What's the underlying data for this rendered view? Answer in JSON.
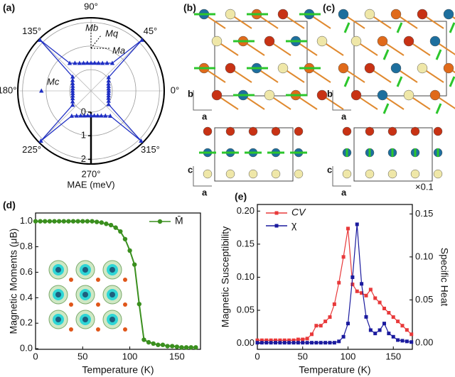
{
  "chart_data": [
    {
      "type": "polar",
      "title": "(a)",
      "xlabel": "MAE (meV)",
      "angle_ticks": [
        {
          "value": 90,
          "label": "90°"
        },
        {
          "value": 45,
          "label": "45°"
        },
        {
          "value": 0,
          "label": "0°"
        },
        {
          "value": 315,
          "label": "315°"
        },
        {
          "value": 270,
          "label": "270°"
        },
        {
          "value": 225,
          "label": "225°"
        },
        {
          "value": 180,
          "label": "180°"
        },
        {
          "value": 135,
          "label": "135°"
        }
      ],
      "rlim": [
        -0.9,
        2.2
      ],
      "rticks": [
        0,
        1,
        2
      ],
      "series": [
        {
          "color": "#1f2fc4",
          "theta": [
            0,
            7.5,
            15,
            22.5,
            30,
            37.5,
            45,
            52.5,
            60,
            67.5,
            75,
            82.5,
            90,
            97.5,
            105,
            112.5,
            120,
            127.5,
            135,
            142.5,
            150,
            157.5,
            165,
            172.5,
            180,
            187.5,
            195,
            202.5,
            210,
            217.5,
            225,
            232.5,
            240,
            247.5,
            255,
            262.5,
            270,
            277.5,
            285,
            292.5,
            300,
            307.5,
            315,
            322.5,
            330,
            337.5,
            345,
            352.5
          ],
          "values": [
            -0.15,
            -0.15,
            -0.13,
            -0.1,
            -0.04,
            0.04,
            2.15,
            0.58,
            0.46,
            0.37,
            0.32,
            0.29,
            0.28,
            0.29,
            0.32,
            0.37,
            0.46,
            0.58,
            2.15,
            0.08,
            0.0,
            -0.06,
            -0.1,
            -0.12,
            -0.12,
            -0.12,
            -0.1,
            -0.06,
            0.0,
            0.08,
            2.1,
            0.44,
            0.32,
            0.24,
            0.19,
            0.16,
            0.15,
            0.16,
            0.19,
            0.24,
            0.32,
            0.44,
            2.1,
            0.04,
            -0.04,
            -0.1,
            -0.13,
            -0.15
          ]
        },
        {
          "color": "#1f2fc4",
          "theta": [
            180
          ],
          "values": [
            1.2
          ]
        }
      ],
      "annotations": [
        "Mb",
        "Mq",
        "Ma",
        "Mc"
      ]
    },
    {
      "type": "line",
      "title": "(d)",
      "xlabel": "Temperature (K)",
      "ylabel": "Magnetic Moments (μB)",
      "xlim": [
        0,
        175
      ],
      "xticks": [
        0,
        50,
        100,
        150
      ],
      "ylim": [
        -0.005,
        1.065
      ],
      "yticks": [
        {
          "value": 0,
          "label": "0.0"
        },
        {
          "value": 0.2,
          "label": "0.2"
        },
        {
          "value": 0.4,
          "label": "0.4"
        },
        {
          "value": 0.6,
          "label": "0.6"
        },
        {
          "value": 0.8,
          "label": "0.8"
        },
        {
          "value": 1,
          "label": "1.0"
        }
      ],
      "legend": "upper right",
      "x": [
        0,
        5,
        10,
        15,
        20,
        25,
        30,
        35,
        40,
        45,
        50,
        55,
        60,
        65,
        70,
        75,
        80,
        85,
        90,
        95,
        100,
        105,
        110,
        115,
        120,
        125,
        130,
        135,
        140,
        145,
        150,
        155,
        160,
        165,
        170
      ],
      "series": [
        {
          "name": "M̄",
          "color": "#3a8f1e",
          "values": [
            1.0,
            1.0,
            1.0,
            1.0,
            1.0,
            1.0,
            1.0,
            1.0,
            1.0,
            1.0,
            1.0,
            1.0,
            1.0,
            0.995,
            0.99,
            0.98,
            0.97,
            0.95,
            0.92,
            0.86,
            0.77,
            0.66,
            0.35,
            0.07,
            0.05,
            0.04,
            0.03,
            0.03,
            0.02,
            0.02,
            0.015,
            0.01,
            0.01,
            0.01,
            0.01
          ]
        }
      ]
    },
    {
      "type": "line",
      "title": "(e)",
      "xlabel": "Temperature (K)",
      "ylabel": "Magnetic Susceptibility",
      "y2label": "Specific Heat",
      "annotation": "×0.1",
      "xlim": [
        0,
        171
      ],
      "xticks": [
        0,
        50,
        100,
        150
      ],
      "ylim": [
        -0.009,
        0.21
      ],
      "yticks": [
        {
          "value": 0,
          "label": "0.00"
        },
        0.05,
        {
          "value": 0.1,
          "label": "0.10"
        },
        0.15,
        {
          "value": 0.2,
          "label": "0.20"
        }
      ],
      "y2lim": [
        -0.0075,
        0.161
      ],
      "y2ticks": [
        {
          "value": 0,
          "label": "0.00"
        },
        0.05,
        {
          "value": 0.1,
          "label": "0.10"
        },
        0.15
      ],
      "legend": "upper left",
      "x": [
        0,
        5,
        10,
        15,
        20,
        25,
        30,
        35,
        40,
        45,
        50,
        55,
        60,
        65,
        70,
        75,
        80,
        85,
        90,
        95,
        100,
        105,
        110,
        115,
        120,
        125,
        130,
        135,
        140,
        145,
        150,
        155,
        160,
        165,
        170
      ],
      "series": [
        {
          "name": "CV",
          "color": "#e8393a",
          "axis": "y2",
          "values": [
            0.003,
            0.003,
            0.003,
            0.003,
            0.003,
            0.003,
            0.003,
            0.003,
            0.003,
            0.004,
            0.004,
            0.005,
            0.01,
            0.02,
            0.02,
            0.025,
            0.03,
            0.045,
            0.07,
            0.1,
            0.133,
            0.068,
            0.06,
            0.058,
            0.055,
            0.062,
            0.052,
            0.047,
            0.04,
            0.035,
            0.03,
            0.025,
            0.02,
            0.015,
            0.01
          ]
        },
        {
          "name": "χ",
          "color": "#1a1a9e",
          "values": [
            0.001,
            0.001,
            0.001,
            0.001,
            0.001,
            0.001,
            0.001,
            0.001,
            0.001,
            0.001,
            0.001,
            0.001,
            0.001,
            0.001,
            0.001,
            0.001,
            0.001,
            0.001,
            0.003,
            0.01,
            0.03,
            0.1,
            0.18,
            0.09,
            0.04,
            0.02,
            0.015,
            0.02,
            0.03,
            0.015,
            0.01,
            0.005,
            0.004,
            0.003,
            0.002
          ]
        }
      ]
    }
  ],
  "structures": [
    {
      "label": "(b)",
      "top_axes": [
        "b",
        "a"
      ],
      "bottom_axes": [
        "c",
        "a"
      ]
    },
    {
      "label": "(c)",
      "top_axes": [
        "b",
        "a"
      ],
      "bottom_axes": [
        "c",
        "a"
      ]
    }
  ]
}
